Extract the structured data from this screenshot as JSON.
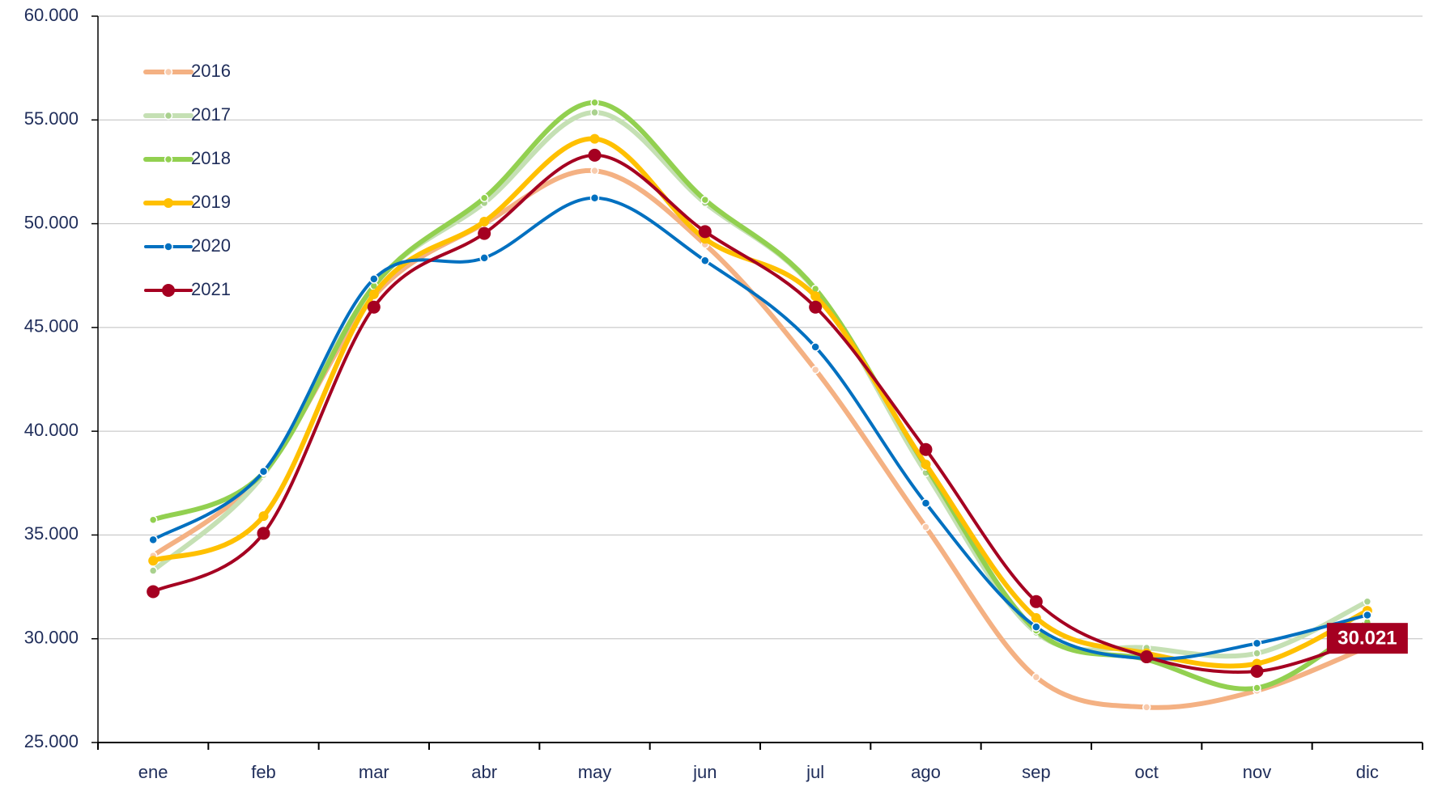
{
  "chart_data": {
    "type": "line",
    "categories": [
      "ene",
      "feb",
      "mar",
      "abr",
      "may",
      "jun",
      "jul",
      "ago",
      "sep",
      "oct",
      "nov",
      "dic"
    ],
    "series": [
      {
        "name": "2016",
        "color": "#f4b183",
        "values": [
          34000,
          38000,
          46500,
          50000,
          52550,
          49000,
          42960,
          35380,
          28150,
          26700,
          27500,
          29600
        ]
      },
      {
        "name": "2017",
        "color": "#c5e0b4",
        "values": [
          33280,
          37900,
          47000,
          51000,
          55360,
          51000,
          46800,
          38000,
          30300,
          29560,
          29300,
          31790
        ]
      },
      {
        "name": "2018",
        "color": "#92d050",
        "values": [
          35730,
          38000,
          47000,
          51240,
          55840,
          51150,
          46860,
          38300,
          30400,
          29000,
          27630,
          30800
        ]
      },
      {
        "name": "2019",
        "color": "#ffc000",
        "values": [
          33760,
          35910,
          46600,
          50100,
          54090,
          49270,
          46510,
          38400,
          31000,
          29300,
          28800,
          31350
        ]
      },
      {
        "name": "2020",
        "color": "#0070c0",
        "values": [
          34770,
          38060,
          47340,
          48350,
          51240,
          48220,
          44060,
          36530,
          30570,
          29040,
          29780,
          31140
        ]
      },
      {
        "name": "2021",
        "color": "#a50021",
        "values": [
          32270,
          35080,
          45980,
          49530,
          53300,
          49620,
          45980,
          39120,
          31790,
          29130,
          28430,
          30021
        ],
        "value_labels": [
          null,
          null,
          null,
          null,
          null,
          null,
          null,
          null,
          null,
          null,
          null,
          "30.021"
        ]
      }
    ],
    "ylim": [
      25000,
      60000
    ],
    "yticks": [
      {
        "value": 25000,
        "label": "25.000"
      },
      {
        "value": 30000,
        "label": "30.000"
      },
      {
        "value": 35000,
        "label": "35.000"
      },
      {
        "value": 40000,
        "label": "40.000"
      },
      {
        "value": 45000,
        "label": "45.000"
      },
      {
        "value": 50000,
        "label": "50.000"
      },
      {
        "value": 55000,
        "label": "55.000"
      },
      {
        "value": 60000,
        "label": "60.000"
      }
    ],
    "grid": true,
    "legend": "upper left"
  }
}
